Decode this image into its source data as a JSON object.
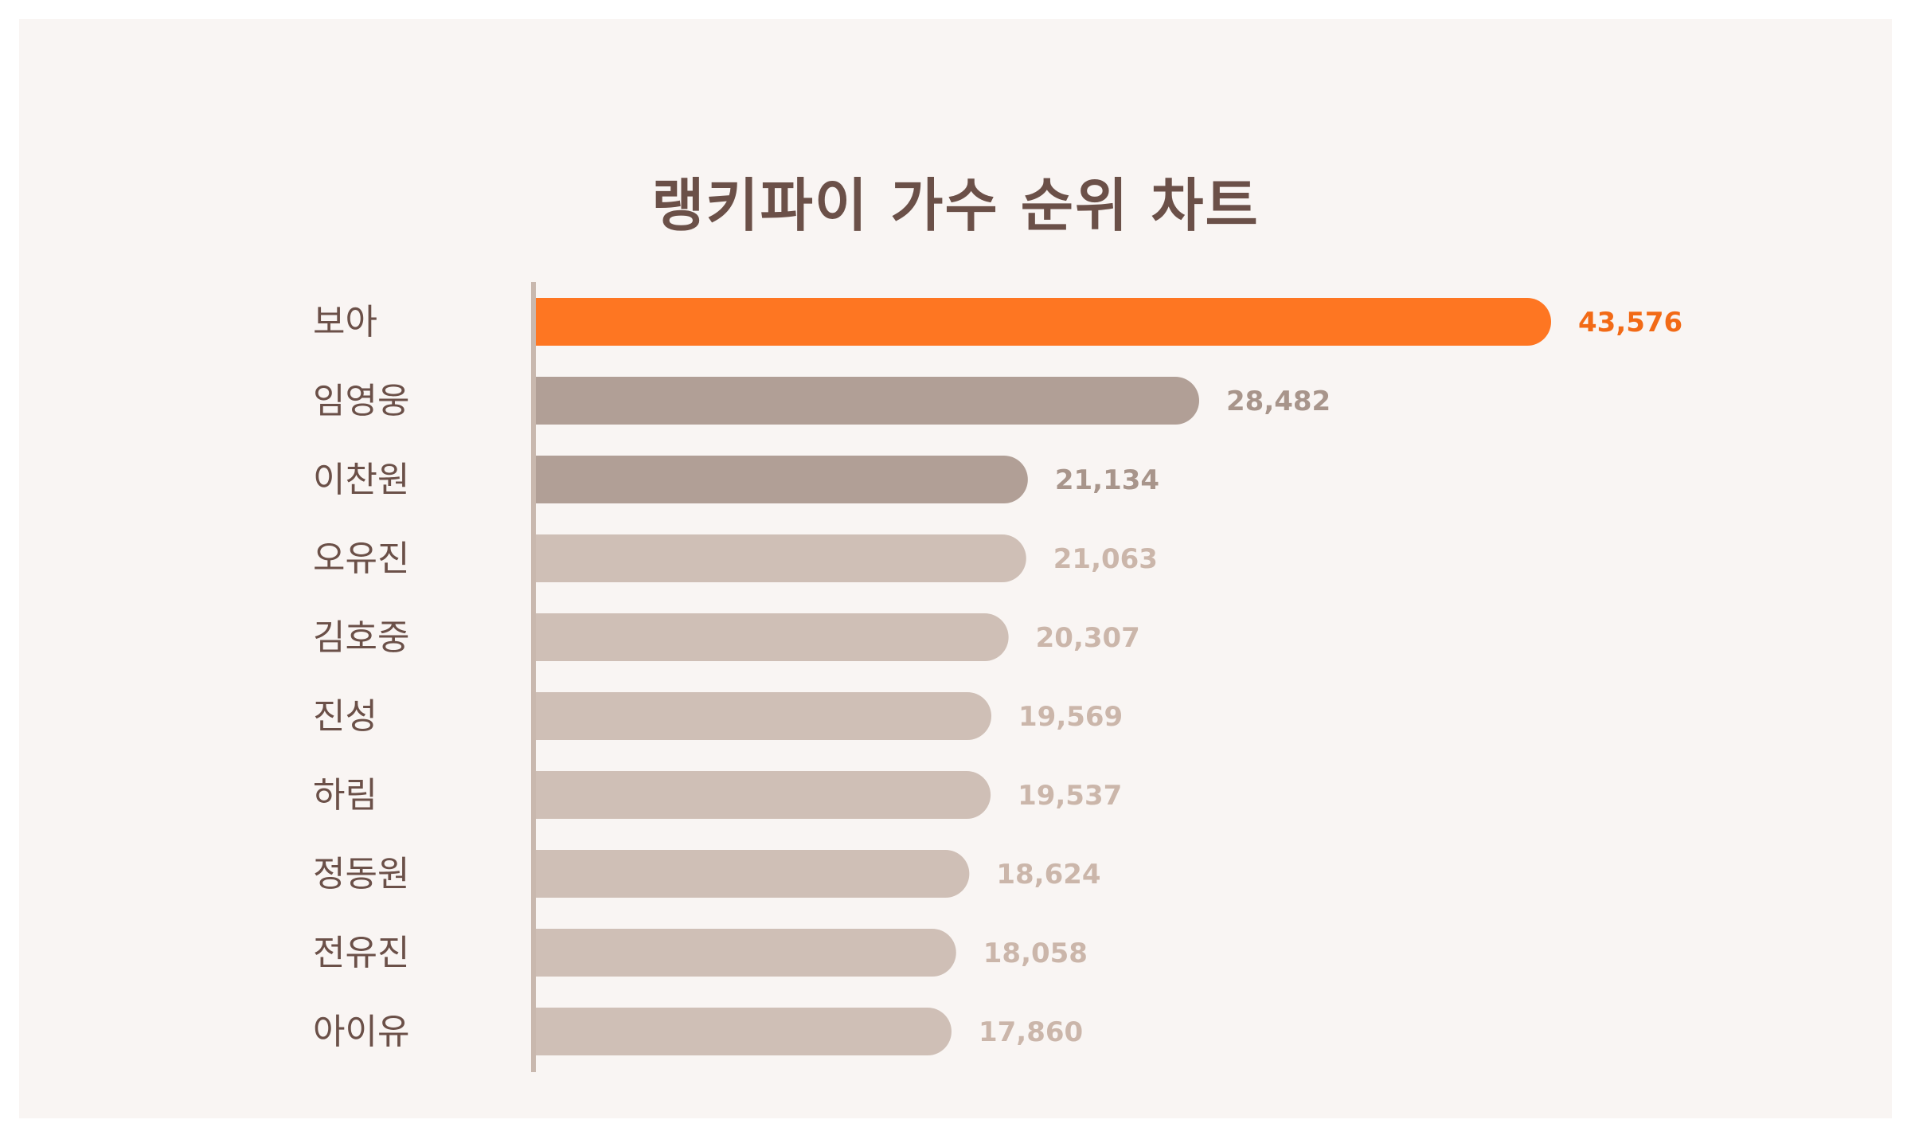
{
  "chart_data": {
    "type": "bar",
    "orientation": "horizontal",
    "title": "랭키파이 가수 순위 차트",
    "categories": [
      "보아",
      "임영웅",
      "이찬원",
      "오유진",
      "김호중",
      "진성",
      "하림",
      "정동원",
      "전유진",
      "아이유"
    ],
    "values": [
      43576,
      28482,
      21134,
      21063,
      20307,
      19569,
      19537,
      18624,
      18058,
      17860
    ],
    "value_labels": [
      "43,576",
      "28,482",
      "21,134",
      "21,063",
      "20,307",
      "19,569",
      "19,537",
      "18,624",
      "18,058",
      "17,860"
    ],
    "xlim": [
      0,
      43576
    ],
    "grid": false,
    "legend": "none",
    "colors": {
      "background": "#f9f5f3",
      "title": "#6b5048",
      "category_text": "#6b5048",
      "axis": "#c9b8ae",
      "bar_top": "#fe7622",
      "label_top": "#f26a16",
      "bar_mid": "#b19f96",
      "label_mid": "#a8958b",
      "bar_rest": "#cfbfb6",
      "label_rest": "#cbb6aa"
    }
  }
}
